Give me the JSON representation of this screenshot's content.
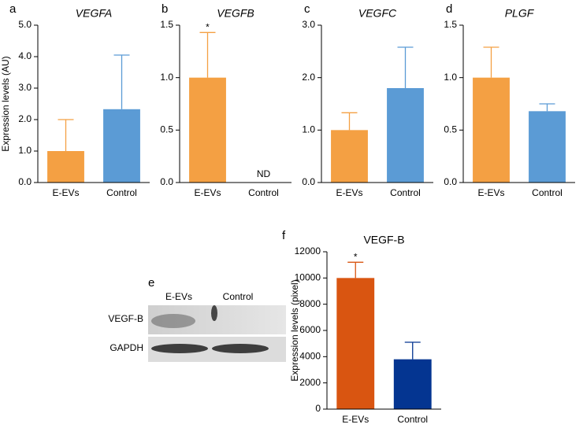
{
  "chart_data": [
    {
      "type": "bar",
      "panel_label": "a",
      "title": "VEGFA",
      "ylabel": "Expression levels (AU)",
      "categories": [
        "E-EVs",
        "Control"
      ],
      "values": [
        1.0,
        2.33
      ],
      "errors": [
        1.0,
        1.72
      ],
      "colors": [
        "#f4a043",
        "#5b9bd5"
      ],
      "ylim": [
        0,
        5
      ],
      "yticks": [
        {
          "value": 0,
          "label": "0.0"
        },
        {
          "value": 1,
          "label": "1.0"
        },
        {
          "value": 2,
          "label": "2.0"
        },
        {
          "value": 3,
          "label": "3.0"
        },
        {
          "value": 4,
          "label": "4.0"
        },
        {
          "value": 5,
          "label": "5.0"
        }
      ]
    },
    {
      "type": "bar",
      "panel_label": "b",
      "title": "VEGFB",
      "categories": [
        "E-EVs",
        "Control"
      ],
      "values": [
        1.0,
        null
      ],
      "errors": [
        0.43,
        null
      ],
      "colors": [
        "#f4a043",
        "#5b9bd5"
      ],
      "ylim": [
        0,
        1.5
      ],
      "yticks": [
        {
          "value": 0,
          "label": "0.0"
        },
        {
          "value": 0.5,
          "label": "0.5"
        },
        {
          "value": 1,
          "label": "1.0"
        },
        {
          "value": 1.5,
          "label": "1.5"
        }
      ],
      "annotations": [
        {
          "text": "*",
          "at": "E-EVs"
        },
        {
          "text": "ND",
          "at": "Control"
        }
      ]
    },
    {
      "type": "bar",
      "panel_label": "c",
      "title": "VEGFC",
      "categories": [
        "E-EVs",
        "Control"
      ],
      "values": [
        1.0,
        1.8
      ],
      "errors": [
        0.33,
        0.78
      ],
      "colors": [
        "#f4a043",
        "#5b9bd5"
      ],
      "ylim": [
        0,
        3
      ],
      "yticks": [
        {
          "value": 0,
          "label": "0.0"
        },
        {
          "value": 1,
          "label": "1.0"
        },
        {
          "value": 2,
          "label": "2.0"
        },
        {
          "value": 3,
          "label": "3.0"
        }
      ]
    },
    {
      "type": "bar",
      "panel_label": "d",
      "title": "PLGF",
      "categories": [
        "E-EVs",
        "Control"
      ],
      "values": [
        1.0,
        0.68
      ],
      "errors": [
        0.29,
        0.07
      ],
      "colors": [
        "#f4a043",
        "#5b9bd5"
      ],
      "ylim": [
        0,
        1.5
      ],
      "yticks": [
        {
          "value": 0,
          "label": "0.0"
        },
        {
          "value": 0.5,
          "label": "0.5"
        },
        {
          "value": 1,
          "label": "1.0"
        },
        {
          "value": 1.5,
          "label": "1.5"
        }
      ]
    },
    {
      "type": "bar",
      "panel_label": "f",
      "title": "VEGF-B",
      "ylabel": "Expression levels (pixel)",
      "categories": [
        "E-EVs",
        "Control"
      ],
      "values": [
        10000,
        3800
      ],
      "errors": [
        1200,
        1300
      ],
      "colors": [
        "#d95511",
        "#043591"
      ],
      "ylim": [
        0,
        12000
      ],
      "yticks": [
        0,
        2000,
        4000,
        6000,
        8000,
        10000,
        12000
      ],
      "annotations": [
        {
          "text": "*",
          "at": "E-EVs"
        }
      ]
    }
  ],
  "blot": {
    "panel_label": "e",
    "columns": [
      "E-EVs",
      "Control"
    ],
    "rows": [
      "VEGF-B",
      "GAPDH"
    ]
  }
}
